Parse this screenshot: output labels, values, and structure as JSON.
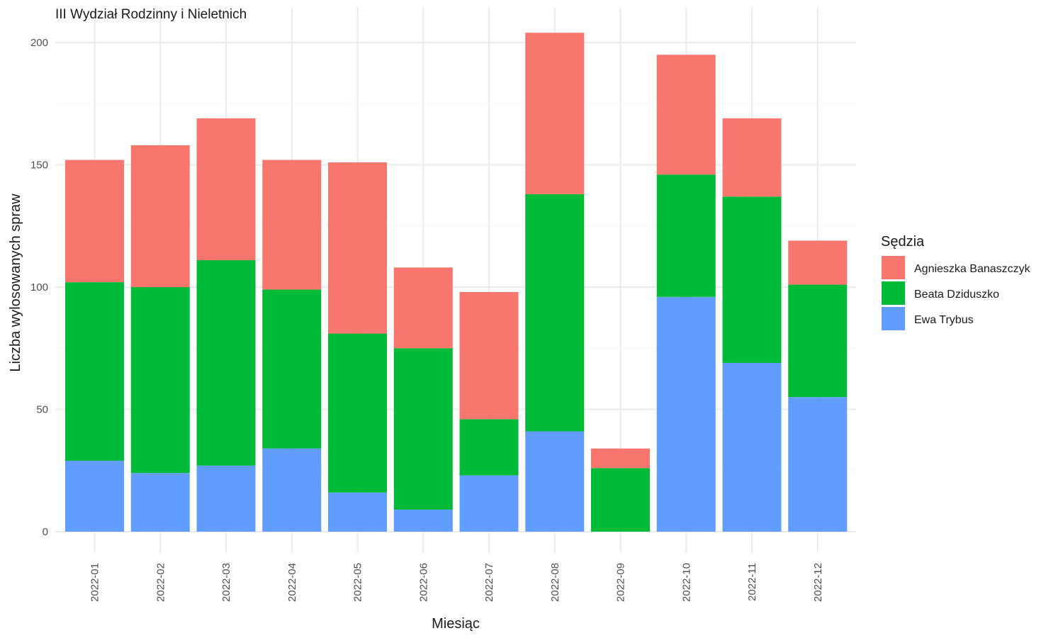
{
  "chart_data": {
    "type": "bar",
    "stacked": true,
    "title": "III Wydział Rodzinny i Nieletnich",
    "xlabel": "Miesiąc",
    "ylabel": "Liczba wylosowanych spraw",
    "ylim": [
      0,
      200
    ],
    "yticks": [
      0,
      50,
      100,
      150,
      200
    ],
    "grid": true,
    "legend_title": "Sędzia",
    "legend_position": "right",
    "categories": [
      "2022-01",
      "2022-02",
      "2022-03",
      "2022-04",
      "2022-05",
      "2022-06",
      "2022-07",
      "2022-08",
      "2022-09",
      "2022-10",
      "2022-11",
      "2022-12"
    ],
    "series": [
      {
        "name": "Ewa Trybus",
        "color": "#619CFF",
        "values": [
          29,
          24,
          27,
          34,
          16,
          9,
          23,
          41,
          0,
          96,
          69,
          55
        ]
      },
      {
        "name": "Beata Dziduszko",
        "color": "#00BA38",
        "values": [
          73,
          76,
          84,
          65,
          65,
          66,
          23,
          97,
          26,
          50,
          68,
          46
        ]
      },
      {
        "name": "Agnieszka Banaszczyk",
        "color": "#F8766D",
        "values": [
          50,
          58,
          58,
          53,
          70,
          33,
          52,
          66,
          8,
          49,
          32,
          18
        ]
      }
    ],
    "legend_order": [
      "Agnieszka Banaszczyk",
      "Beata Dziduszko",
      "Ewa Trybus"
    ]
  }
}
